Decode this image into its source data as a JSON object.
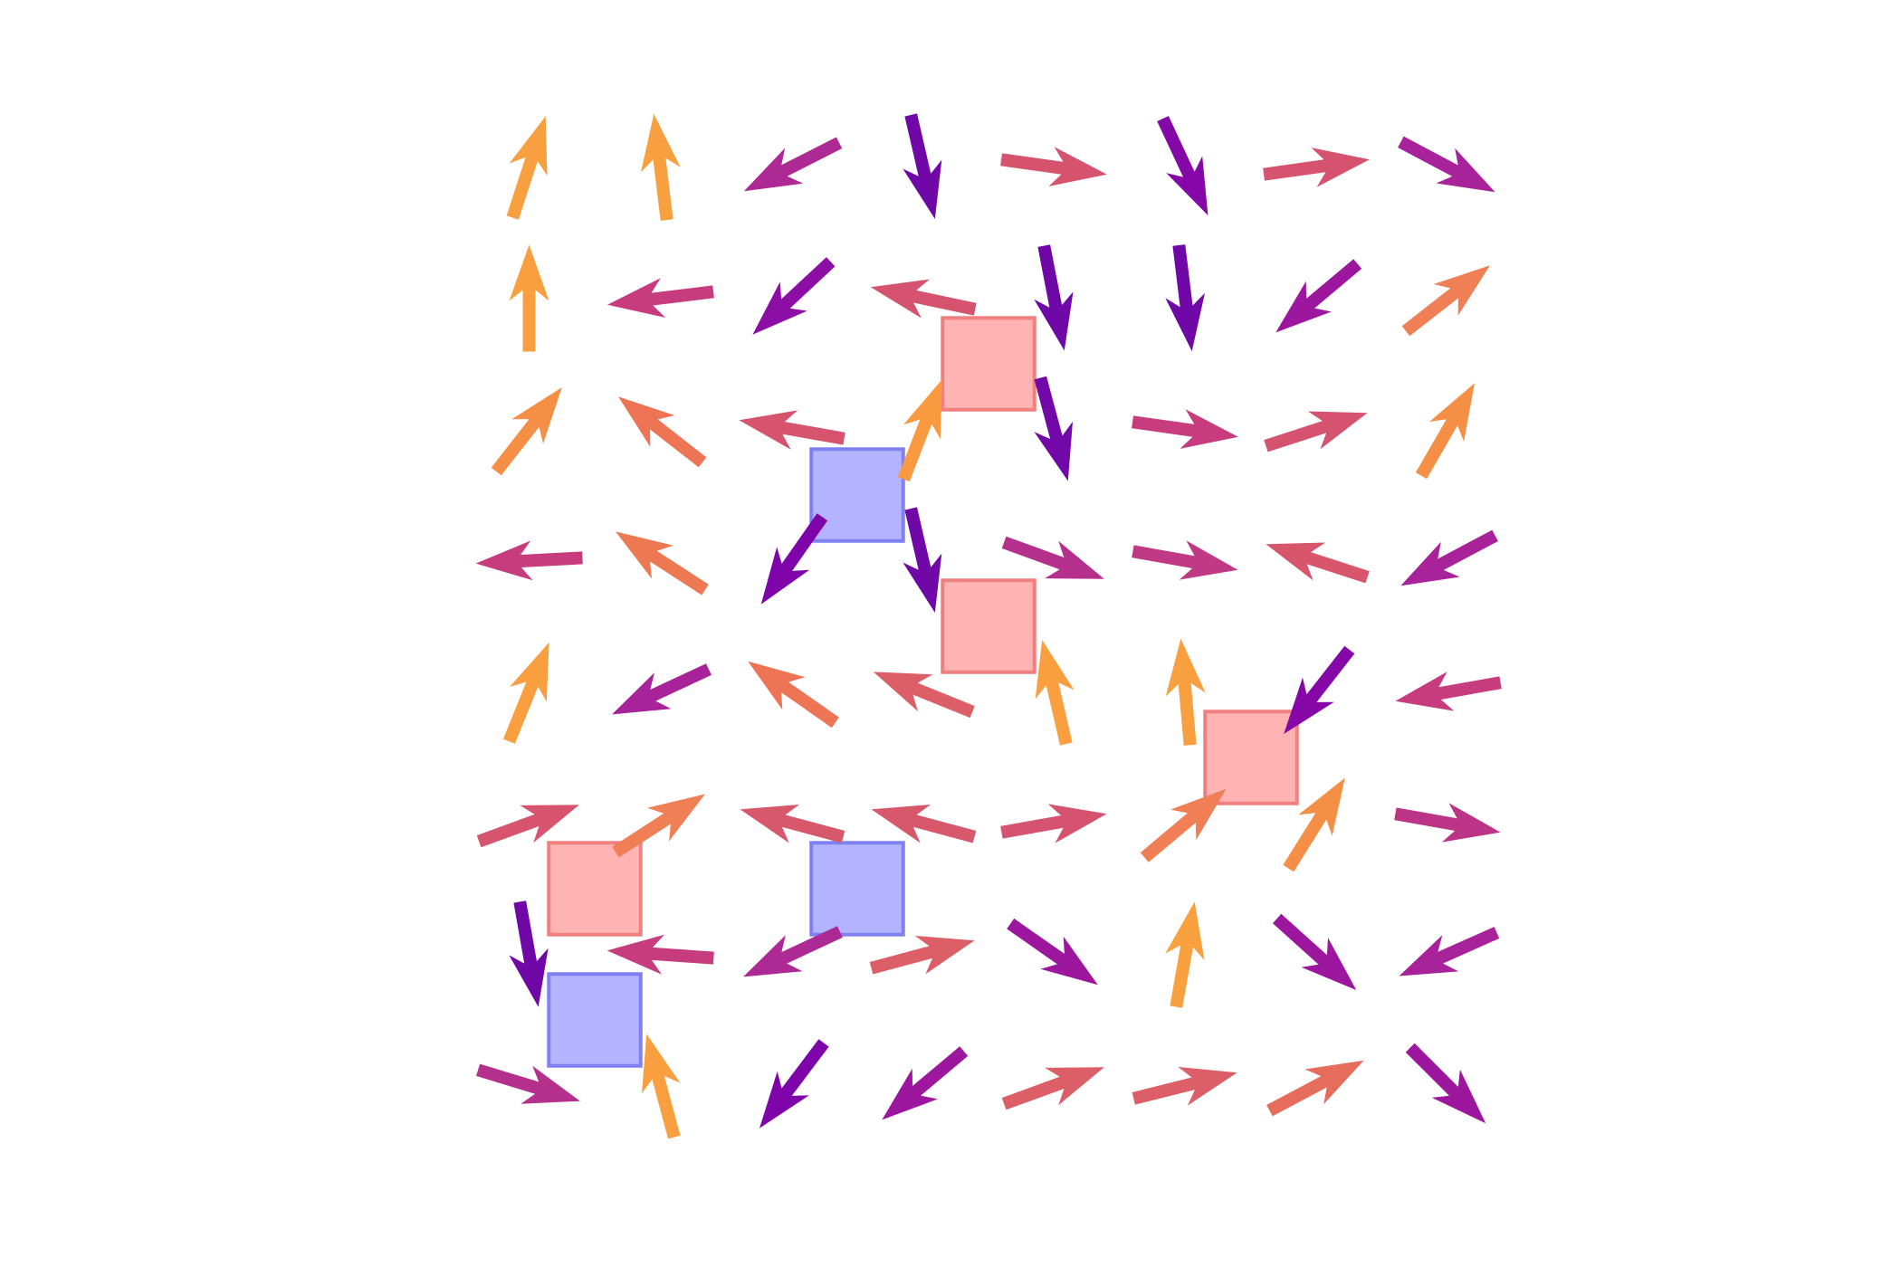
{
  "chart_data": {
    "type": "quiver",
    "title": "",
    "xlabel": "",
    "ylabel": "",
    "xlim": [
      -0.5,
      7.5
    ],
    "ylim": [
      -0.5,
      7.5
    ],
    "grid": false,
    "legend": "none",
    "axes_visible": false,
    "colormap": "plasma",
    "color_range": [
      "#0d0887",
      "#f0f921"
    ],
    "color_value_range": [
      0,
      6.2832
    ],
    "arrows": [
      {
        "x": 0,
        "y": 7,
        "angle_deg": 72,
        "color": "#f89f3f"
      },
      {
        "x": 1,
        "y": 7,
        "angle_deg": 97,
        "color": "#f89f3f"
      },
      {
        "x": 2,
        "y": 7,
        "angle_deg": 207,
        "color": "#ad2a95"
      },
      {
        "x": 3,
        "y": 7,
        "angle_deg": 283,
        "color": "#7008a7"
      },
      {
        "x": 4,
        "y": 7,
        "angle_deg": 352,
        "color": "#d6536d"
      },
      {
        "x": 5,
        "y": 7,
        "angle_deg": 295,
        "color": "#8507a7"
      },
      {
        "x": 6,
        "y": 7,
        "angle_deg": 8,
        "color": "#d5536e"
      },
      {
        "x": 7,
        "y": 7,
        "angle_deg": 332,
        "color": "#a8229a"
      },
      {
        "x": 0,
        "y": 6,
        "angle_deg": 90,
        "color": "#f99f3f"
      },
      {
        "x": 1,
        "y": 6,
        "angle_deg": 187,
        "color": "#c63c7f"
      },
      {
        "x": 2,
        "y": 6,
        "angle_deg": 223,
        "color": "#8d0ea5"
      },
      {
        "x": 3,
        "y": 6,
        "angle_deg": 168,
        "color": "#d5536e"
      },
      {
        "x": 4,
        "y": 6,
        "angle_deg": 281,
        "color": "#6f08a7"
      },
      {
        "x": 5,
        "y": 6,
        "angle_deg": 277,
        "color": "#7008a7"
      },
      {
        "x": 6,
        "y": 6,
        "angle_deg": 220,
        "color": "#9c179e"
      },
      {
        "x": 7,
        "y": 6,
        "angle_deg": 38,
        "color": "#f07f56"
      },
      {
        "x": 0,
        "y": 5,
        "angle_deg": 52,
        "color": "#f68f46"
      },
      {
        "x": 1,
        "y": 5,
        "angle_deg": 142,
        "color": "#ee7456"
      },
      {
        "x": 2,
        "y": 5,
        "angle_deg": 170,
        "color": "#d6546d"
      },
      {
        "x": 3,
        "y": 5,
        "angle_deg": 69,
        "color": "#f99a40"
      },
      {
        "x": 4,
        "y": 5,
        "angle_deg": 285,
        "color": "#7208a7"
      },
      {
        "x": 5,
        "y": 5,
        "angle_deg": 352,
        "color": "#c63c7f"
      },
      {
        "x": 6,
        "y": 5,
        "angle_deg": 18,
        "color": "#d5536e"
      },
      {
        "x": 7,
        "y": 5,
        "angle_deg": 60,
        "color": "#f68f46"
      },
      {
        "x": 0,
        "y": 4,
        "angle_deg": 183,
        "color": "#c63c7f"
      },
      {
        "x": 1,
        "y": 4,
        "angle_deg": 147,
        "color": "#ed7953"
      },
      {
        "x": 2,
        "y": 4,
        "angle_deg": 235,
        "color": "#7e03a8"
      },
      {
        "x": 3,
        "y": 4,
        "angle_deg": 283,
        "color": "#7008a7"
      },
      {
        "x": 4,
        "y": 4,
        "angle_deg": 340,
        "color": "#b52f8c"
      },
      {
        "x": 5,
        "y": 4,
        "angle_deg": 350,
        "color": "#bf3984"
      },
      {
        "x": 6,
        "y": 4,
        "angle_deg": 162,
        "color": "#d7566c"
      },
      {
        "x": 7,
        "y": 4,
        "angle_deg": 208,
        "color": "#a8229a"
      },
      {
        "x": 0,
        "y": 3,
        "angle_deg": 68,
        "color": "#f99f3f"
      },
      {
        "x": 1,
        "y": 3,
        "angle_deg": 205,
        "color": "#a8229a"
      },
      {
        "x": 2,
        "y": 3,
        "angle_deg": 145,
        "color": "#ee7456"
      },
      {
        "x": 3,
        "y": 3,
        "angle_deg": 158,
        "color": "#dc5f67"
      },
      {
        "x": 4,
        "y": 3,
        "angle_deg": 103,
        "color": "#f99f3f"
      },
      {
        "x": 5,
        "y": 3,
        "angle_deg": 95,
        "color": "#f89f3f"
      },
      {
        "x": 6,
        "y": 3,
        "angle_deg": 232,
        "color": "#8507a7"
      },
      {
        "x": 7,
        "y": 3,
        "angle_deg": 190,
        "color": "#c63c7f"
      },
      {
        "x": 0,
        "y": 2,
        "angle_deg": 20,
        "color": "#d6546d"
      },
      {
        "x": 1,
        "y": 2,
        "angle_deg": 33,
        "color": "#f07f56"
      },
      {
        "x": 2,
        "y": 2,
        "angle_deg": 165,
        "color": "#d8586b"
      },
      {
        "x": 3,
        "y": 2,
        "angle_deg": 165,
        "color": "#d8586b"
      },
      {
        "x": 4,
        "y": 2,
        "angle_deg": 10,
        "color": "#d5536e"
      },
      {
        "x": 5,
        "y": 2,
        "angle_deg": 40,
        "color": "#f07f56"
      },
      {
        "x": 6,
        "y": 2,
        "angle_deg": 58,
        "color": "#f68f46"
      },
      {
        "x": 7,
        "y": 2,
        "angle_deg": 350,
        "color": "#bc3486"
      },
      {
        "x": 0,
        "y": 1,
        "angle_deg": 280,
        "color": "#6f08a7"
      },
      {
        "x": 1,
        "y": 1,
        "angle_deg": 176,
        "color": "#c63c7f"
      },
      {
        "x": 2,
        "y": 1,
        "angle_deg": 205,
        "color": "#ad2a95"
      },
      {
        "x": 3,
        "y": 1,
        "angle_deg": 15,
        "color": "#dc5f67"
      },
      {
        "x": 4,
        "y": 1,
        "angle_deg": 325,
        "color": "#9c179e"
      },
      {
        "x": 5,
        "y": 1,
        "angle_deg": 80,
        "color": "#f9a03f"
      },
      {
        "x": 6,
        "y": 1,
        "angle_deg": 318,
        "color": "#9c179e"
      },
      {
        "x": 7,
        "y": 1,
        "angle_deg": 204,
        "color": "#a8229a"
      },
      {
        "x": 0,
        "y": 0,
        "angle_deg": 343,
        "color": "#b52f8c"
      },
      {
        "x": 1,
        "y": 0,
        "angle_deg": 105,
        "color": "#f99f3f"
      },
      {
        "x": 2,
        "y": 0,
        "angle_deg": 233,
        "color": "#7e03a8"
      },
      {
        "x": 3,
        "y": 0,
        "angle_deg": 220,
        "color": "#9c179e"
      },
      {
        "x": 4,
        "y": 0,
        "angle_deg": 20,
        "color": "#dc5f67"
      },
      {
        "x": 5,
        "y": 0,
        "angle_deg": 14,
        "color": "#dc5f67"
      },
      {
        "x": 6,
        "y": 0,
        "angle_deg": 28,
        "color": "#e66c5c"
      },
      {
        "x": 7,
        "y": 0,
        "angle_deg": 315,
        "color": "#9c179e"
      }
    ],
    "squares": [
      {
        "x": 3.5,
        "y": 5.5,
        "kind": "red",
        "fill": "#ffb3b3",
        "stroke": "#f08080"
      },
      {
        "x": 2.5,
        "y": 4.5,
        "kind": "blue",
        "fill": "#b3b3ff",
        "stroke": "#8080f0"
      },
      {
        "x": 3.5,
        "y": 3.5,
        "kind": "red",
        "fill": "#ffb3b3",
        "stroke": "#f08080"
      },
      {
        "x": 5.5,
        "y": 2.5,
        "kind": "red",
        "fill": "#ffb3b3",
        "stroke": "#f08080"
      },
      {
        "x": 0.5,
        "y": 1.5,
        "kind": "red",
        "fill": "#ffb3b3",
        "stroke": "#f08080"
      },
      {
        "x": 2.5,
        "y": 1.5,
        "kind": "blue",
        "fill": "#b3b3ff",
        "stroke": "#8080f0"
      },
      {
        "x": 0.5,
        "y": 0.5,
        "kind": "blue",
        "fill": "#b3b3ff",
        "stroke": "#8080f0"
      }
    ]
  }
}
